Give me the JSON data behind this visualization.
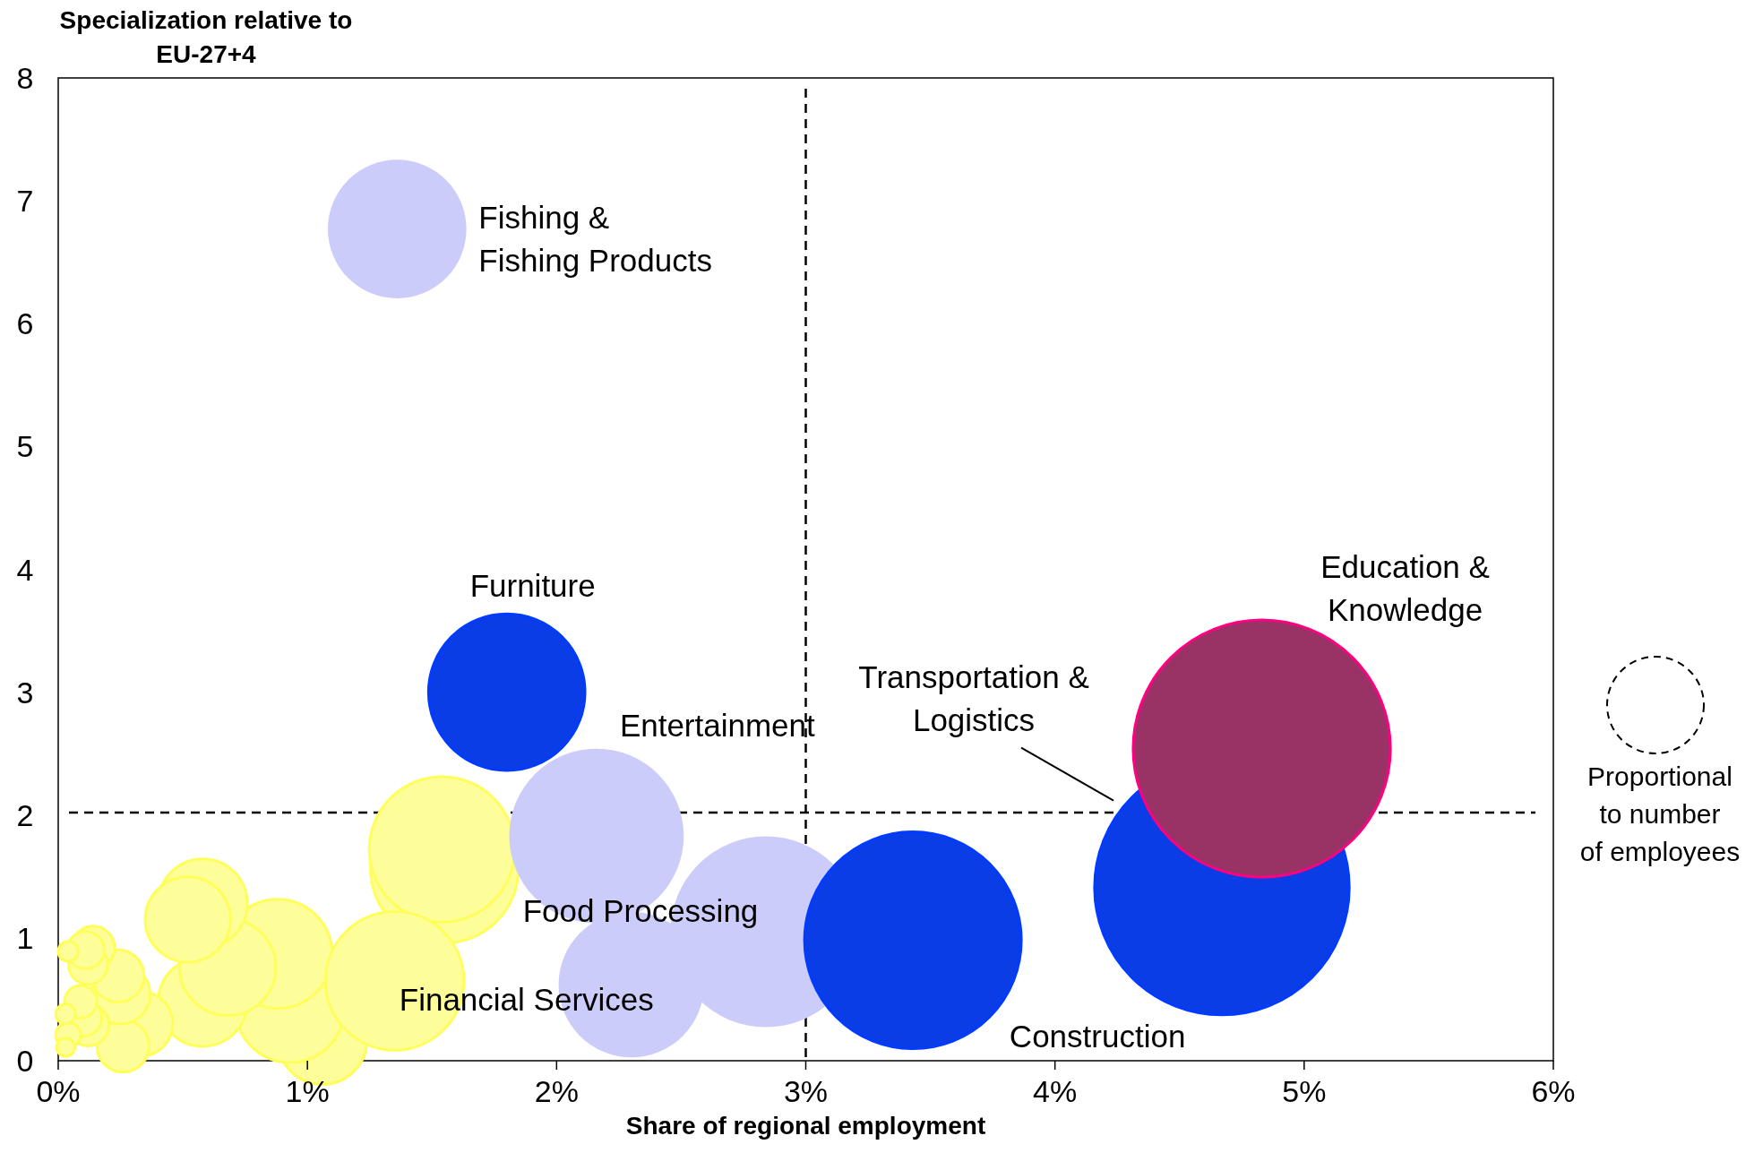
{
  "chart_data": {
    "type": "bubble",
    "xlabel": "Share of regional employment",
    "ylabel": "Specialization relative to\nEU-27+4",
    "xlim": [
      0,
      6
    ],
    "ylim": [
      0,
      8
    ],
    "xticks": [
      {
        "value": 0,
        "label": "0%"
      },
      {
        "value": 1,
        "label": "1%"
      },
      {
        "value": 2,
        "label": "2%"
      },
      {
        "value": 3,
        "label": "3%"
      },
      {
        "value": 4,
        "label": "4%"
      },
      {
        "value": 5,
        "label": "5%"
      },
      {
        "value": 6,
        "label": "6%"
      }
    ],
    "yticks": [
      0,
      1,
      2,
      3,
      4,
      5,
      6,
      7,
      8
    ],
    "ref_lines": [
      {
        "axis": "x",
        "value": 3,
        "line_style": "dashed",
        "color": "#000000"
      },
      {
        "axis": "y",
        "value": 2.02,
        "line_style": "dashed",
        "color": "#000000"
      }
    ],
    "series": [
      {
        "color": "#fdfd99",
        "x": [
          1.55,
          1.54,
          1.06,
          0.93,
          0.58,
          0.88,
          0.68,
          1.35,
          0.58,
          0.52,
          0.33,
          0.26,
          0.25,
          0.24,
          0.14,
          0.12,
          0.11,
          0.04,
          0.12,
          0.1,
          0.09,
          0.04,
          0.03,
          0.03
        ],
        "values": [
          1.56,
          1.72,
          0.17,
          0.43,
          0.48,
          0.87,
          0.76,
          0.65,
          1.28,
          1.15,
          0.3,
          0.12,
          0.54,
          0.69,
          0.92,
          0.78,
          0.9,
          0.89,
          0.29,
          0.35,
          0.48,
          0.21,
          0.11,
          0.38
        ],
        "sizes": [
          0.33,
          0.32,
          0.12,
          0.18,
          0.12,
          0.18,
          0.14,
          0.29,
          0.12,
          0.11,
          0.063,
          0.041,
          0.053,
          0.041,
          0.028,
          0.023,
          0.021,
          0.006,
          0.026,
          0.021,
          0.016,
          0.0095,
          0.005,
          0.006
        ]
      },
      {
        "name": "Fishing & Fishing Products",
        "color": "#ccccfa",
        "x": [
          1.36
        ],
        "values": [
          6.77
        ],
        "sizes": [
          0.29
        ]
      },
      {
        "name": "Entertainment",
        "color": "#ccccfa",
        "x": [
          2.16
        ],
        "values": [
          1.83
        ],
        "sizes": [
          0.46
        ]
      },
      {
        "name": "Financial Services",
        "color": "#ccccfa",
        "x": [
          2.3
        ],
        "values": [
          0.62
        ],
        "sizes": [
          0.32
        ]
      },
      {
        "name": "Food Processing",
        "color": "#ccccfa",
        "x": [
          2.84
        ],
        "values": [
          1.05
        ],
        "sizes": [
          0.55
        ]
      },
      {
        "name": "Furniture",
        "color": "#0a3de6",
        "x": [
          1.8
        ],
        "values": [
          3.0
        ],
        "sizes": [
          0.37
        ]
      },
      {
        "name": "Construction",
        "color": "#0a3de6",
        "x": [
          3.43
        ],
        "values": [
          0.98
        ],
        "sizes": [
          0.71
        ]
      },
      {
        "name": "Transportation & Logistics",
        "color": "#0a3de6",
        "x": [
          4.67
        ],
        "values": [
          1.41
        ],
        "sizes": [
          0.98
        ]
      },
      {
        "name": "Education & Knowledge",
        "color": "#993366",
        "x": [
          4.83
        ],
        "values": [
          2.54
        ],
        "sizes": [
          1
        ]
      }
    ],
    "annotations": [
      "Proportional\nto number\nof employees"
    ]
  }
}
